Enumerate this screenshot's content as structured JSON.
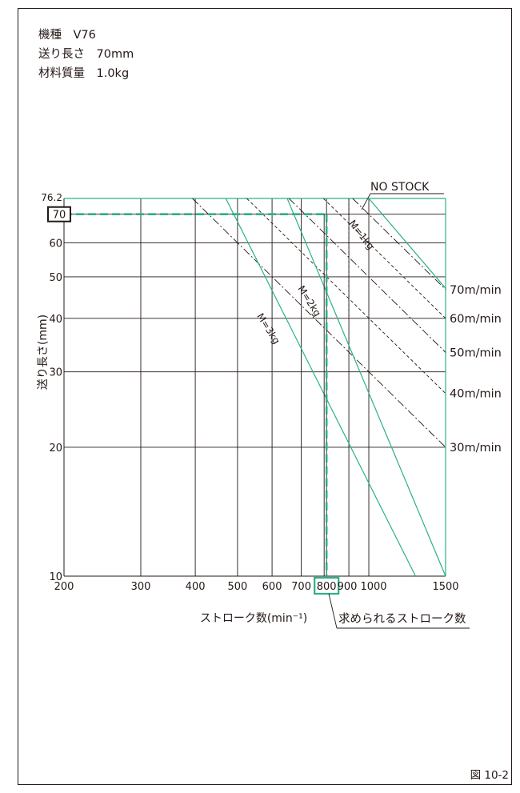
{
  "spec": {
    "model": "機種　V76",
    "feed_length": "送り長さ　70mm",
    "material_mass": "材料質量　1.0kg"
  },
  "figure_number": "図 10-2",
  "colors": {
    "green": "#2bb08a",
    "line": "#231815"
  },
  "chart_data": {
    "type": "line",
    "x_scale": "log",
    "y_scale": "log",
    "xlim": [
      200,
      1500
    ],
    "ylim": [
      10,
      76.2
    ],
    "xlabel": "ストローク数(min⁻¹)",
    "ylabel": "送り長さ(mm)",
    "x_ticks": [
      {
        "value": 200,
        "label": "200"
      },
      {
        "value": 300,
        "label": "300"
      },
      {
        "value": 400,
        "label": "400"
      },
      {
        "value": 500,
        "label": "500"
      },
      {
        "value": 600,
        "label": "600"
      },
      {
        "value": 700,
        "label": "700"
      },
      {
        "value": 800,
        "label": "800"
      },
      {
        "value": 900,
        "label": "900"
      },
      {
        "value": 1000,
        "label": "1000"
      },
      {
        "value": 1500,
        "label": "1500"
      }
    ],
    "y_ticks": [
      {
        "value": 10,
        "label": "10"
      },
      {
        "value": 20,
        "label": "20"
      },
      {
        "value": 30,
        "label": "30"
      },
      {
        "value": 40,
        "label": "40"
      },
      {
        "value": 50,
        "label": "50"
      },
      {
        "value": 60,
        "label": "60"
      },
      {
        "value": 70,
        "label": "70"
      },
      {
        "value": 76.2,
        "label": "76.2"
      }
    ],
    "speed_series": [
      {
        "name": "70m/min",
        "x": [
          918,
          1500
        ],
        "y": [
          76.2,
          46.7
        ]
      },
      {
        "name": "60m/min",
        "x": [
          787,
          1500
        ],
        "y": [
          76.2,
          40
        ]
      },
      {
        "name": "50m/min",
        "x": [
          656,
          1500
        ],
        "y": [
          76.2,
          33.3
        ]
      },
      {
        "name": "40m/min",
        "x": [
          525,
          1500
        ],
        "y": [
          76.2,
          26.7
        ]
      },
      {
        "name": "30m/min",
        "x": [
          394,
          1500
        ],
        "y": [
          76.2,
          20
        ]
      }
    ],
    "mass_series": [
      {
        "name": "M=1kg",
        "x": [
          1000,
          1500
        ],
        "y": [
          76.2,
          47
        ]
      },
      {
        "name": "M=2kg",
        "x": [
          650,
          1500
        ],
        "y": [
          76.2,
          10
        ]
      },
      {
        "name": "M=3kg",
        "x": [
          470,
          1280
        ],
        "y": [
          76.2,
          10
        ]
      }
    ],
    "no_stock_x": 900,
    "no_stock_label": "NO STOCK",
    "highlight": {
      "x": 800,
      "y": 70
    },
    "result_label": "求められるストローク数"
  }
}
